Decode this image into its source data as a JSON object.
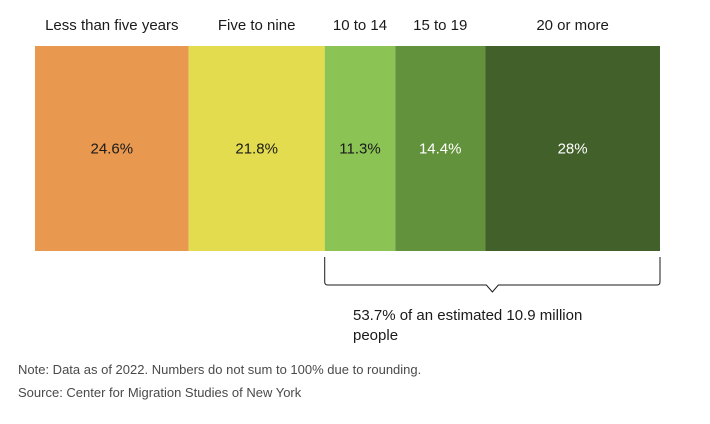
{
  "chart_data": {
    "type": "bar",
    "orientation": "horizontal-stacked",
    "categories": [
      "Less than five years",
      "Five to nine",
      "10 to 14",
      "15 to 19",
      "20 or more"
    ],
    "values": [
      24.6,
      21.8,
      11.3,
      14.4,
      28
    ],
    "value_labels": [
      "24.6%",
      "21.8%",
      "11.3%",
      "14.4%",
      "28%"
    ],
    "colors": [
      "#e8994f",
      "#e3dc4e",
      "#8bc355",
      "#63923d",
      "#42602a"
    ],
    "value_label_colors": [
      "#1a1a1a",
      "#1a1a1a",
      "#1a1a1a",
      "#ffffff",
      "#ffffff"
    ],
    "title": "",
    "xlabel": "",
    "ylabel": "",
    "bracket": {
      "from_index": 2,
      "to_index": 4,
      "text": "53.7% of an estimated 10.9 million people"
    }
  },
  "notes": {
    "note": "Note: Data as of 2022. Numbers do not sum to 100% due to rounding.",
    "source": "Source: Center for Migration Studies of New York"
  }
}
